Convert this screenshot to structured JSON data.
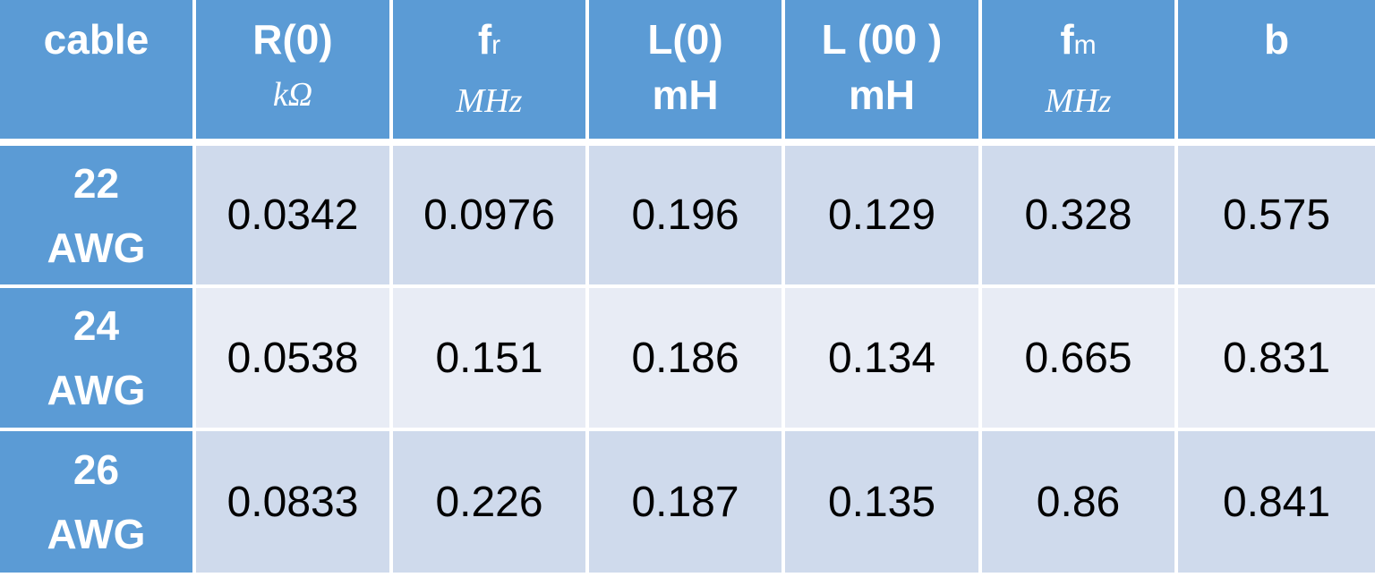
{
  "table": {
    "header": [
      {
        "label": "cable"
      },
      {
        "label": "R(0)",
        "unit": "kΩ"
      },
      {
        "label": "f",
        "sub": "r",
        "unit": "MHz"
      },
      {
        "label": "L(0)",
        "unit": "mH"
      },
      {
        "label": "L (00 )",
        "unit": "mH"
      },
      {
        "label": "f",
        "sub": "m",
        "unit": "MHz"
      },
      {
        "label": "b"
      }
    ],
    "rows": [
      {
        "cable": [
          "22",
          "AWG"
        ],
        "values": [
          "0.0342",
          "0.0976",
          "0.196",
          "0.129",
          "0.328",
          "0.575"
        ]
      },
      {
        "cable": [
          "24",
          "AWG"
        ],
        "values": [
          "0.0538",
          "0.151",
          "0.186",
          "0.134",
          "0.665",
          "0.831"
        ]
      },
      {
        "cable": [
          "26",
          "AWG"
        ],
        "values": [
          "0.0833",
          "0.226",
          "0.187",
          "0.135",
          "0.86",
          "0.841"
        ]
      }
    ]
  }
}
